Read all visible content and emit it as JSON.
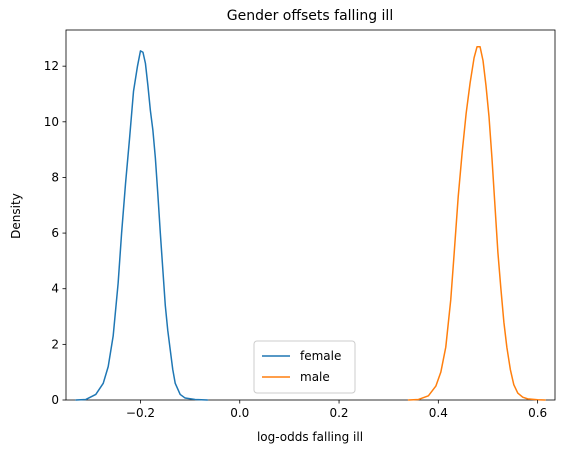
{
  "chart_data": {
    "type": "line",
    "title": "Gender offsets falling ill",
    "xlabel": "log-odds falling ill",
    "ylabel": "Density",
    "xlim": [
      -0.35,
      0.635
    ],
    "ylim": [
      0,
      13.3
    ],
    "x_ticks": [
      -0.2,
      0.0,
      0.2,
      0.4,
      0.6
    ],
    "x_tick_labels": [
      "−0.2",
      "0.0",
      "0.2",
      "0.4",
      "0.6"
    ],
    "y_ticks": [
      0,
      2,
      4,
      6,
      8,
      10,
      12
    ],
    "y_tick_labels": [
      "0",
      "2",
      "4",
      "6",
      "8",
      "10",
      "12"
    ],
    "grid": false,
    "legend_position": "bottom-center",
    "series": [
      {
        "name": "female",
        "color": "#1f77b4",
        "x": [
          -0.33,
          -0.31,
          -0.29,
          -0.275,
          -0.265,
          -0.255,
          -0.245,
          -0.238,
          -0.23,
          -0.222,
          -0.214,
          -0.206,
          -0.2,
          -0.195,
          -0.19,
          -0.185,
          -0.18,
          -0.175,
          -0.17,
          -0.165,
          -0.16,
          -0.155,
          -0.15,
          -0.145,
          -0.14,
          -0.135,
          -0.13,
          -0.12,
          -0.11,
          -0.09,
          -0.065
        ],
        "y": [
          0.0,
          0.02,
          0.2,
          0.6,
          1.2,
          2.3,
          4.2,
          6.0,
          7.8,
          9.4,
          11.1,
          12.0,
          12.55,
          12.5,
          12.1,
          11.3,
          10.4,
          9.7,
          8.7,
          7.4,
          6.0,
          4.7,
          3.4,
          2.5,
          1.8,
          1.1,
          0.6,
          0.2,
          0.07,
          0.02,
          0.0
        ]
      },
      {
        "name": "male",
        "color": "#ff7f0e",
        "x": [
          0.34,
          0.36,
          0.38,
          0.395,
          0.405,
          0.415,
          0.425,
          0.432,
          0.44,
          0.448,
          0.456,
          0.464,
          0.472,
          0.478,
          0.484,
          0.49,
          0.496,
          0.502,
          0.508,
          0.514,
          0.52,
          0.526,
          0.532,
          0.538,
          0.545,
          0.552,
          0.56,
          0.57,
          0.58,
          0.6,
          0.615
        ],
        "y": [
          0.0,
          0.02,
          0.15,
          0.5,
          1.0,
          1.9,
          3.6,
          5.3,
          7.3,
          8.9,
          10.3,
          11.4,
          12.3,
          12.7,
          12.7,
          12.2,
          11.3,
          10.2,
          8.7,
          7.0,
          5.3,
          4.0,
          2.8,
          1.9,
          1.1,
          0.55,
          0.25,
          0.1,
          0.04,
          0.01,
          0.0
        ]
      }
    ]
  }
}
